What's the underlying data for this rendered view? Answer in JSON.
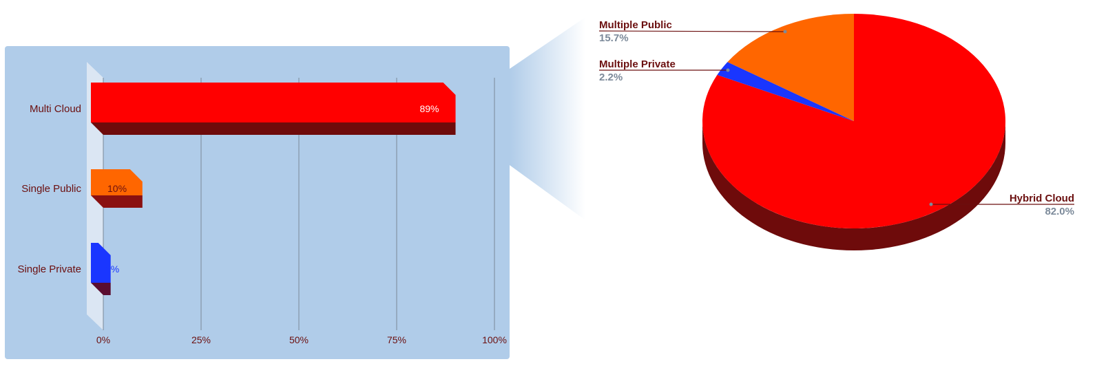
{
  "colors": {
    "panel": "#b0cce9",
    "red": "#ff0000",
    "red_dark": "#6e0b0b",
    "orange": "#ff6600",
    "orange_dark": "#8a1010",
    "blue": "#1a36ff",
    "blue_dark": "#5a0d30",
    "grid": "#7a8796",
    "label_dark": "#6b0f0f",
    "label_grey": "#7c8a9a"
  },
  "chart_data": [
    {
      "type": "bar",
      "orientation": "horizontal",
      "style": "3d",
      "categories": [
        "Multi Cloud",
        "Single Public",
        "Single Private"
      ],
      "values": [
        89,
        10,
        1
      ],
      "data_labels": [
        "89%",
        "10%",
        "1%"
      ],
      "xlim": [
        0,
        100
      ],
      "x_ticks": [
        "0%",
        "25%",
        "50%",
        "75%",
        "100%"
      ],
      "grid": "vertical",
      "legend": "none"
    },
    {
      "type": "pie",
      "style": "3d",
      "exploded_from": "Multi Cloud",
      "slices": [
        {
          "name": "Hybrid Cloud",
          "value": 82.0,
          "label": "82.0%",
          "color": "#ff0000"
        },
        {
          "name": "Multiple Public",
          "value": 15.7,
          "label": "15.7%",
          "color": "#ff6600"
        },
        {
          "name": "Multiple Private",
          "value": 2.2,
          "label": "2.2%",
          "color": "#1a36ff"
        }
      ],
      "legend": "none"
    }
  ]
}
